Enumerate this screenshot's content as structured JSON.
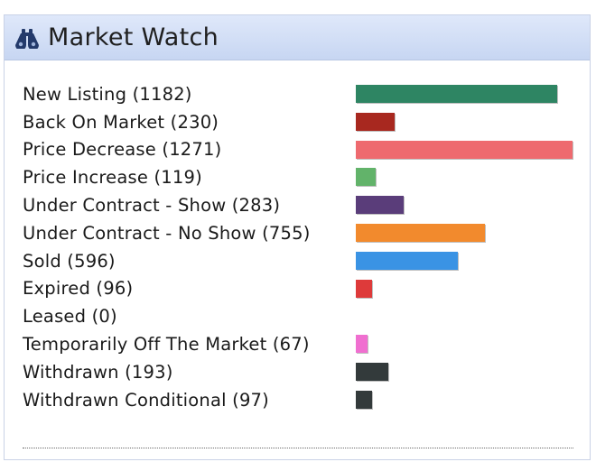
{
  "widget": {
    "title": "Market Watch",
    "icon": "binoculars-icon"
  },
  "max_count": 1271,
  "items": [
    {
      "label": "New Listing (1182)",
      "count": 1182,
      "color": "#2e8563"
    },
    {
      "label": "Back On Market (230)",
      "count": 230,
      "color": "#a8281f"
    },
    {
      "label": "Price Decrease (1271)",
      "count": 1271,
      "color": "#ee6a6f"
    },
    {
      "label": "Price Increase (119)",
      "count": 119,
      "color": "#62b36a"
    },
    {
      "label": "Under Contract - Show (283)",
      "count": 283,
      "color": "#5a3d7a"
    },
    {
      "label": "Under Contract - No Show (755)",
      "count": 755,
      "color": "#f28a2d"
    },
    {
      "label": "Sold (596)",
      "count": 596,
      "color": "#3a93e4"
    },
    {
      "label": "Expired (96)",
      "count": 96,
      "color": "#de3a3a"
    },
    {
      "label": "Leased (0)",
      "count": 0,
      "color": "#888888"
    },
    {
      "label": "Temporarily Off The Market (67)",
      "count": 67,
      "color": "#f06fd0"
    },
    {
      "label": "Withdrawn (193)",
      "count": 193,
      "color": "#333a3b"
    },
    {
      "label": "Withdrawn Conditional (97)",
      "count": 97,
      "color": "#333a3b"
    }
  ]
}
